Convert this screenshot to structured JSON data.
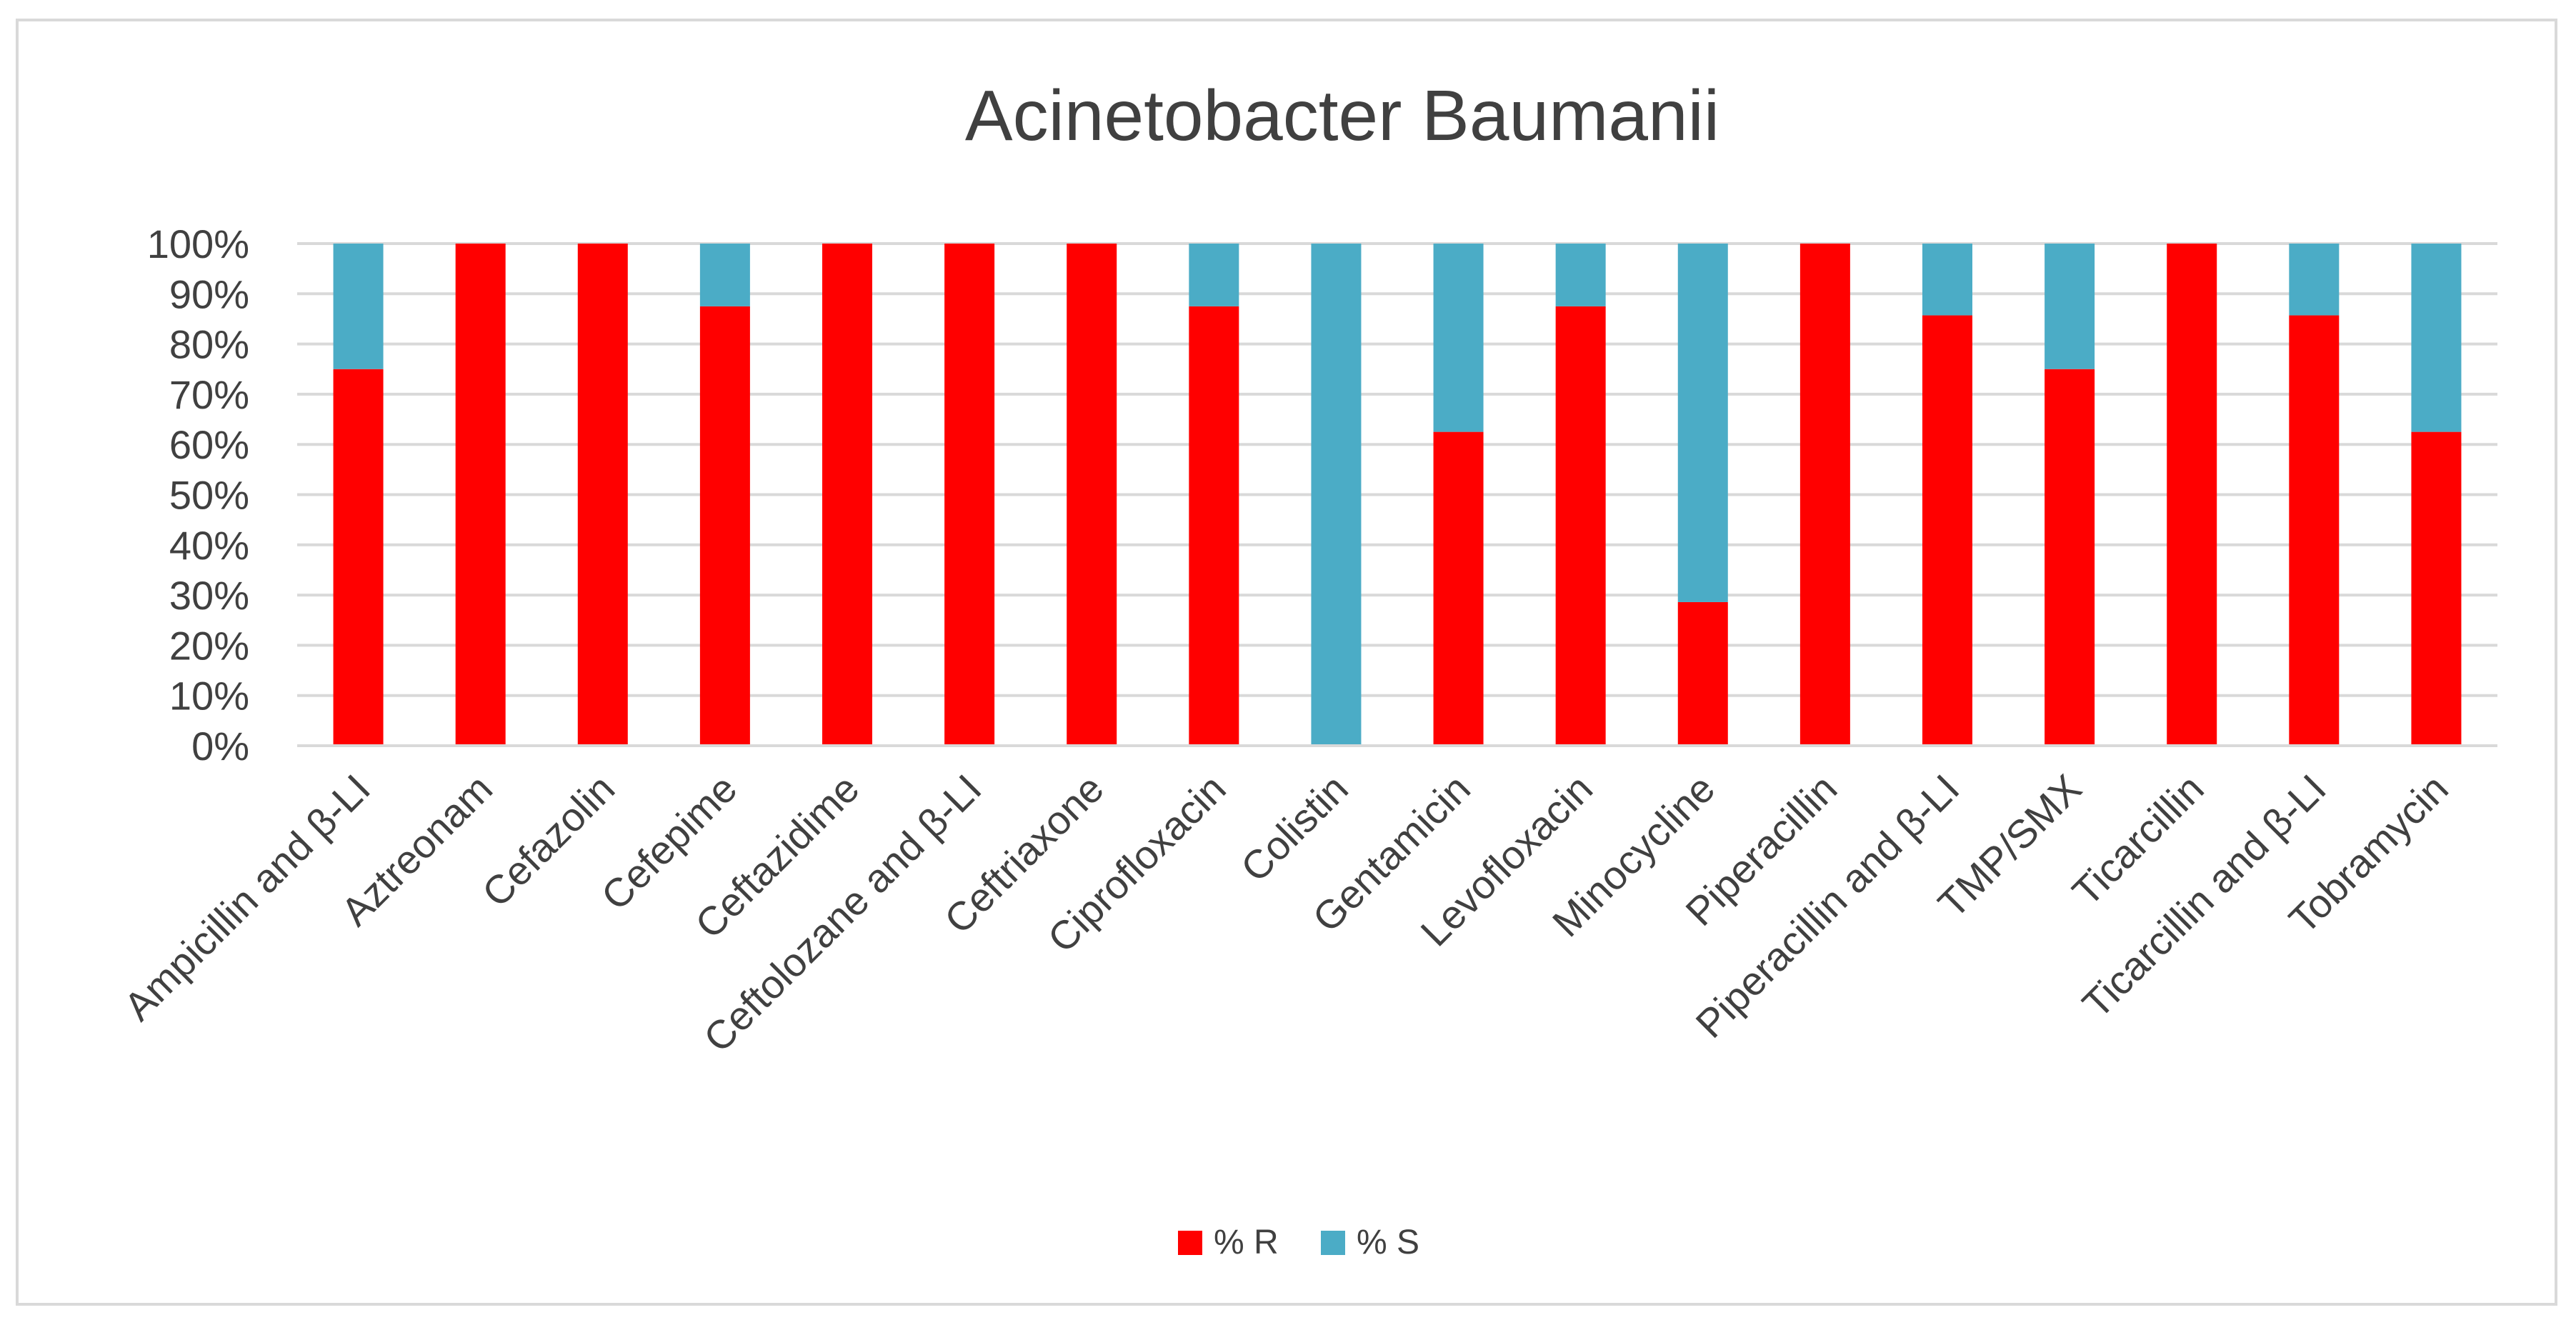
{
  "chart_data": {
    "type": "bar",
    "stacked": true,
    "percent_stacked": true,
    "title": "Acinetobacter Baumanii",
    "xlabel": "",
    "ylabel": "",
    "ylim": [
      0,
      100
    ],
    "y_ticks": [
      "0%",
      "10%",
      "20%",
      "30%",
      "40%",
      "50%",
      "60%",
      "70%",
      "80%",
      "90%",
      "100%"
    ],
    "grid": true,
    "legend_position": "bottom",
    "categories": [
      "Ampicillin and β-LI",
      "Aztreonam",
      "Cefazolin",
      "Cefepime",
      "Ceftazidime",
      "Ceftolozane and β-LI",
      "Ceftriaxone",
      "Ciprofloxacin",
      "Colistin",
      "Gentamicin",
      "Levofloxacin",
      "Minocycline",
      "Piperacillin",
      "Piperacillin and β-LI",
      "TMP/SMX",
      "Ticarcillin",
      "Ticarcillin and β-LI",
      "Tobramycin"
    ],
    "series": [
      {
        "name": "% R",
        "color": "#ff0000",
        "values": [
          75,
          100,
          100,
          87.5,
          100,
          100,
          100,
          87.5,
          0,
          62.5,
          87.5,
          28.6,
          100,
          85.7,
          75,
          100,
          85.7,
          62.5
        ]
      },
      {
        "name": "% S",
        "color": "#4bacc6",
        "values": [
          25,
          0,
          0,
          12.5,
          0,
          0,
          0,
          12.5,
          100,
          37.5,
          12.5,
          71.4,
          0,
          14.3,
          25,
          0,
          14.3,
          37.5
        ]
      }
    ]
  }
}
